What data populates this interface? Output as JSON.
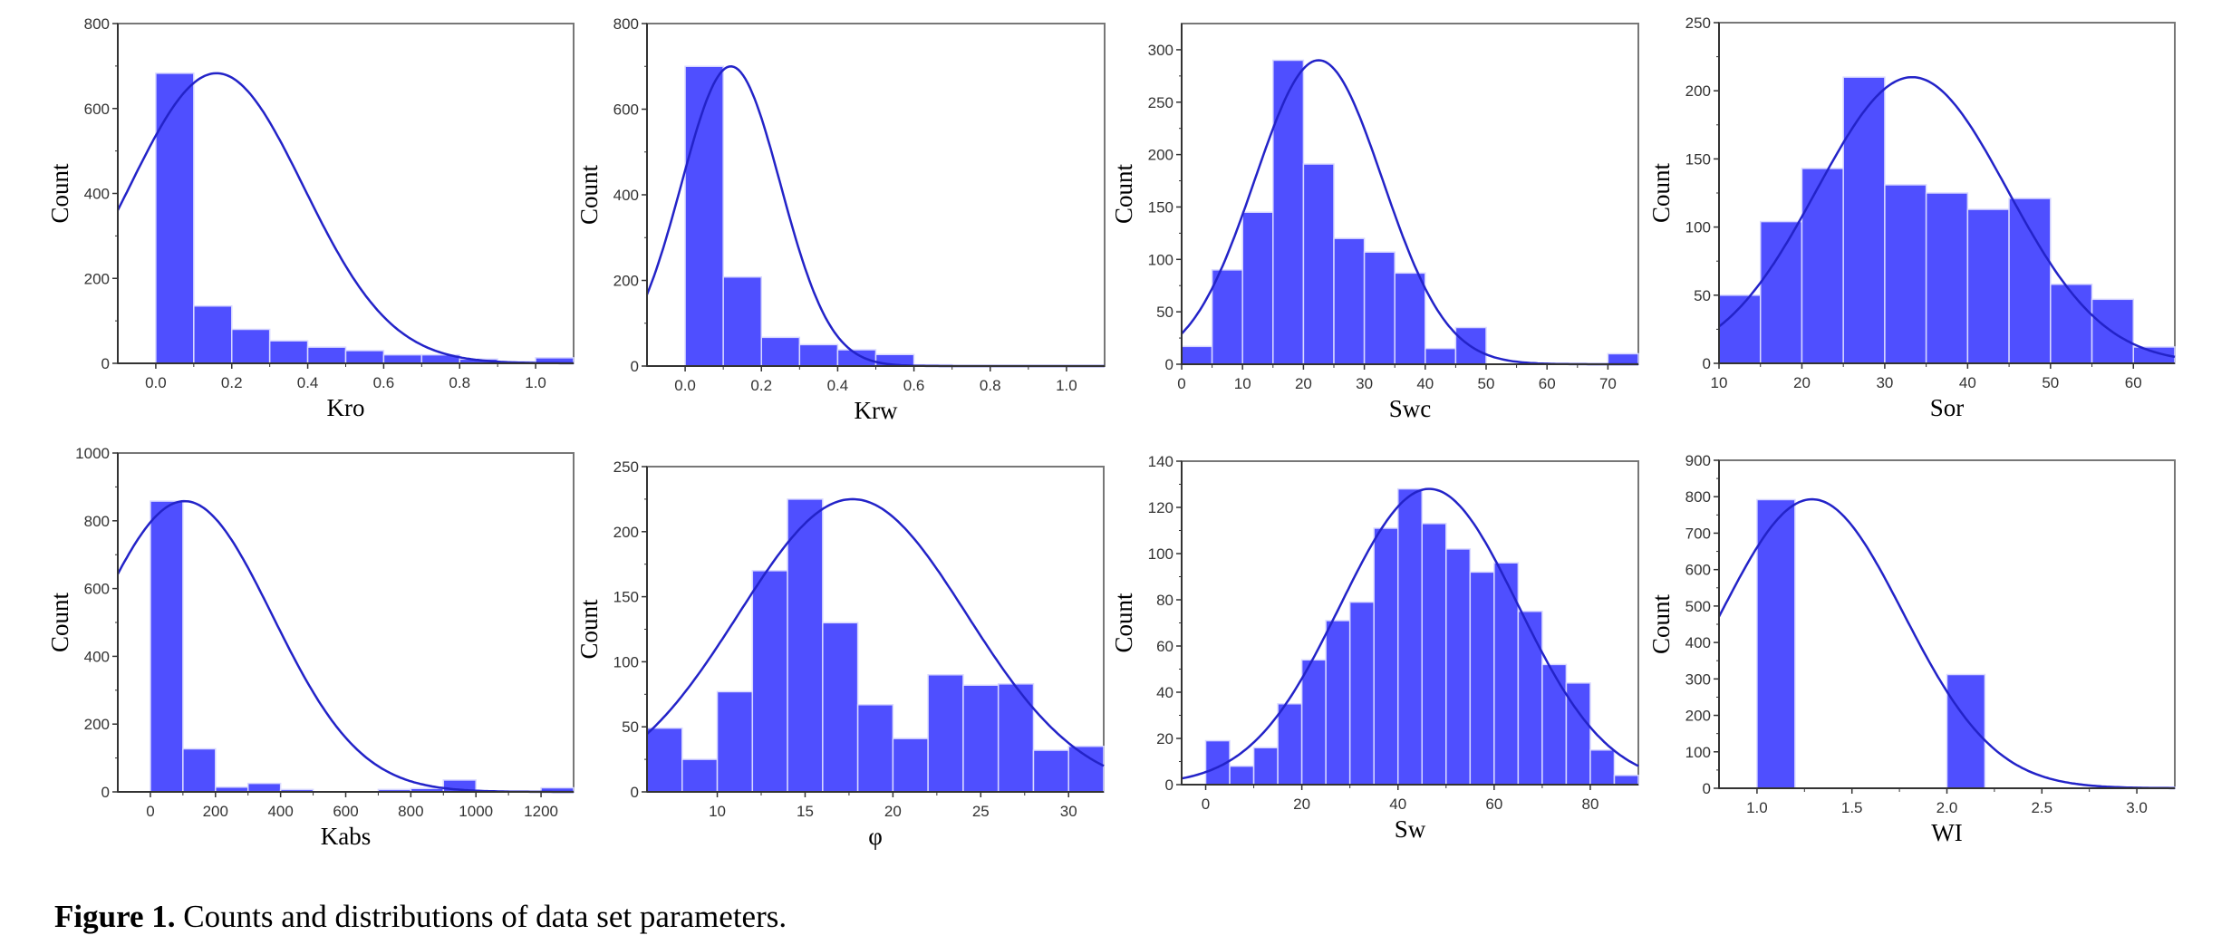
{
  "caption": {
    "label": "Figure 1.",
    "text": " Counts and distributions of data set parameters."
  },
  "colors": {
    "bar_fill": "#4f4fff",
    "bar_edge": "#d8d8ff",
    "curve": "#2323c8",
    "axis": "#333333"
  },
  "chart_data": [
    {
      "type": "bar",
      "subtype": "histogram-with-normal-fit",
      "title": "",
      "xlabel": "Kro",
      "ylabel": "Count",
      "xlim": [
        -0.1,
        1.1
      ],
      "ylim": [
        0,
        800
      ],
      "xticks": [
        0.0,
        0.2,
        0.4,
        0.6,
        0.8,
        1.0
      ],
      "xtick_labels": [
        "0.0",
        "0.2",
        "0.4",
        "0.6",
        "0.8",
        "1.0"
      ],
      "yticks": [
        0,
        200,
        400,
        600,
        800
      ],
      "ytick_labels": [
        "0",
        "200",
        "400",
        "600",
        "800"
      ],
      "bin_edges": [
        0.0,
        0.1,
        0.2,
        0.3,
        0.4,
        0.5,
        0.6,
        0.7,
        0.8,
        0.9,
        1.0,
        1.1
      ],
      "values": [
        683,
        135,
        80,
        53,
        38,
        30,
        20,
        20,
        10,
        4,
        13
      ],
      "fit": {
        "mean": 0.16,
        "peak": 683,
        "sigma": 0.23
      },
      "grid": false
    },
    {
      "type": "bar",
      "subtype": "histogram-with-normal-fit",
      "title": "",
      "xlabel": "Krw",
      "ylabel": "Count",
      "xlim": [
        -0.1,
        1.1
      ],
      "ylim": [
        0,
        800
      ],
      "xticks": [
        0.0,
        0.2,
        0.4,
        0.6,
        0.8,
        1.0
      ],
      "xtick_labels": [
        "0.0",
        "0.2",
        "0.4",
        "0.6",
        "0.8",
        "1.0"
      ],
      "yticks": [
        0,
        200,
        400,
        600,
        800
      ],
      "ytick_labels": [
        "0",
        "200",
        "400",
        "600",
        "800"
      ],
      "bin_edges": [
        0.0,
        0.1,
        0.2,
        0.3,
        0.4,
        0.5,
        0.6,
        0.7
      ],
      "values": [
        700,
        208,
        67,
        50,
        38,
        27,
        3
      ],
      "fit": {
        "mean": 0.12,
        "peak": 700,
        "sigma": 0.13
      },
      "grid": false
    },
    {
      "type": "bar",
      "subtype": "histogram-with-normal-fit",
      "title": "",
      "xlabel": "Swc",
      "ylabel": "Count",
      "xlim": [
        0,
        75
      ],
      "ylim": [
        0,
        325
      ],
      "xticks": [
        0,
        10,
        20,
        30,
        40,
        50,
        60,
        70
      ],
      "xtick_labels": [
        "0",
        "10",
        "20",
        "30",
        "40",
        "50",
        "60",
        "70"
      ],
      "yticks": [
        0,
        50,
        100,
        150,
        200,
        250,
        300
      ],
      "ytick_labels": [
        "0",
        "50",
        "100",
        "150",
        "200",
        "250",
        "300"
      ],
      "bin_edges": [
        0,
        5,
        10,
        15,
        20,
        25,
        30,
        35,
        40,
        45,
        50,
        55,
        60,
        65,
        70,
        75
      ],
      "values": [
        17,
        90,
        145,
        290,
        191,
        120,
        107,
        87,
        15,
        35,
        0,
        0,
        0,
        0,
        10
      ],
      "fit": {
        "mean": 22.5,
        "peak": 290,
        "sigma": 10.5
      },
      "grid": false
    },
    {
      "type": "bar",
      "subtype": "histogram-with-normal-fit",
      "title": "",
      "xlabel": "Sor",
      "ylabel": "Count",
      "xlim": [
        10,
        65
      ],
      "ylim": [
        0,
        250
      ],
      "xticks": [
        10,
        20,
        30,
        40,
        50,
        60
      ],
      "xtick_labels": [
        "10",
        "20",
        "30",
        "40",
        "50",
        "60"
      ],
      "yticks": [
        0,
        50,
        100,
        150,
        200,
        250
      ],
      "ytick_labels": [
        "0",
        "50",
        "100",
        "150",
        "200",
        "250"
      ],
      "bin_edges": [
        10,
        15,
        20,
        25,
        30,
        35,
        40,
        45,
        50,
        55,
        60,
        65
      ],
      "values": [
        50,
        104,
        143,
        210,
        131,
        125,
        113,
        121,
        58,
        47,
        12
      ],
      "fit": {
        "mean": 33.3,
        "peak": 210,
        "sigma": 11.5
      },
      "grid": false
    },
    {
      "type": "bar",
      "subtype": "histogram-with-normal-fit",
      "title": "",
      "xlabel": "Kabs",
      "ylabel": "Count",
      "xlim": [
        -100,
        1300
      ],
      "ylim": [
        0,
        1000
      ],
      "xticks": [
        0,
        200,
        400,
        600,
        800,
        1000,
        1200
      ],
      "xtick_labels": [
        "0",
        "200",
        "400",
        "600",
        "800",
        "1000",
        "1200"
      ],
      "yticks": [
        0,
        200,
        400,
        600,
        800,
        1000
      ],
      "ytick_labels": [
        "0",
        "200",
        "400",
        "600",
        "800",
        "1000"
      ],
      "bin_edges": [
        0,
        100,
        200,
        300,
        400,
        500,
        600,
        700,
        800,
        900,
        1000,
        1100,
        1200,
        1300
      ],
      "values": [
        858,
        127,
        14,
        25,
        7,
        0,
        0,
        7,
        10,
        35,
        0,
        0,
        12
      ],
      "fit": {
        "mean": 105,
        "peak": 858,
        "sigma": 270
      },
      "grid": false
    },
    {
      "type": "bar",
      "subtype": "histogram-with-normal-fit",
      "title": "",
      "xlabel": "φ",
      "ylabel": "Count",
      "xlim": [
        6,
        32
      ],
      "ylim": [
        0,
        250
      ],
      "xticks": [
        10,
        15,
        20,
        25,
        30
      ],
      "xtick_labels": [
        "10",
        "15",
        "20",
        "25",
        "30"
      ],
      "yticks": [
        0,
        50,
        100,
        150,
        200,
        250
      ],
      "ytick_labels": [
        "0",
        "50",
        "100",
        "150",
        "200",
        "250"
      ],
      "bin_edges": [
        6,
        8,
        10,
        12,
        14,
        16,
        18,
        20,
        22,
        24,
        26,
        28,
        30,
        32
      ],
      "values": [
        49,
        25,
        77,
        170,
        225,
        130,
        67,
        41,
        90,
        82,
        83,
        32,
        35
      ],
      "fit": {
        "mean": 17.7,
        "peak": 225,
        "sigma": 6.5
      },
      "grid": false
    },
    {
      "type": "bar",
      "subtype": "histogram-with-normal-fit",
      "title": "",
      "xlabel": "Sw",
      "ylabel": "Count",
      "xlim": [
        -5,
        90
      ],
      "ylim": [
        0,
        140
      ],
      "xticks": [
        0,
        20,
        40,
        60,
        80
      ],
      "xtick_labels": [
        "0",
        "20",
        "40",
        "60",
        "80"
      ],
      "yticks": [
        0,
        20,
        40,
        60,
        80,
        100,
        120,
        140
      ],
      "ytick_labels": [
        "0",
        "20",
        "40",
        "60",
        "80",
        "100",
        "120",
        "140"
      ],
      "bin_edges": [
        0,
        5,
        10,
        15,
        20,
        25,
        30,
        35,
        40,
        45,
        50,
        55,
        60,
        65,
        70,
        75,
        80,
        85,
        90
      ],
      "values": [
        19,
        8,
        16,
        35,
        54,
        71,
        79,
        111,
        128,
        113,
        102,
        92,
        96,
        75,
        52,
        44,
        15,
        4
      ],
      "fit": {
        "mean": 46.5,
        "peak": 128,
        "sigma": 18.5
      },
      "grid": false
    },
    {
      "type": "bar",
      "subtype": "histogram-with-normal-fit",
      "title": "",
      "xlabel": "WI",
      "ylabel": "Count",
      "xlim": [
        0.8,
        3.2
      ],
      "ylim": [
        0,
        900
      ],
      "xticks": [
        1.0,
        1.5,
        2.0,
        2.5,
        3.0
      ],
      "xtick_labels": [
        "1.0",
        "1.5",
        "2.0",
        "2.5",
        "3.0"
      ],
      "yticks": [
        0,
        100,
        200,
        300,
        400,
        500,
        600,
        700,
        800,
        900
      ],
      "ytick_labels": [
        "0",
        "100",
        "200",
        "300",
        "400",
        "500",
        "600",
        "700",
        "800",
        "900"
      ],
      "bin_edges": [
        1.0,
        1.2,
        1.4,
        1.6,
        1.8,
        2.0,
        2.2,
        2.4,
        2.6,
        2.8,
        3.0,
        3.2
      ],
      "values": [
        792,
        0,
        0,
        0,
        0,
        312,
        0,
        0,
        0,
        0,
        3
      ],
      "fit": {
        "mean": 1.29,
        "peak": 793,
        "sigma": 0.48
      },
      "grid": false
    }
  ]
}
